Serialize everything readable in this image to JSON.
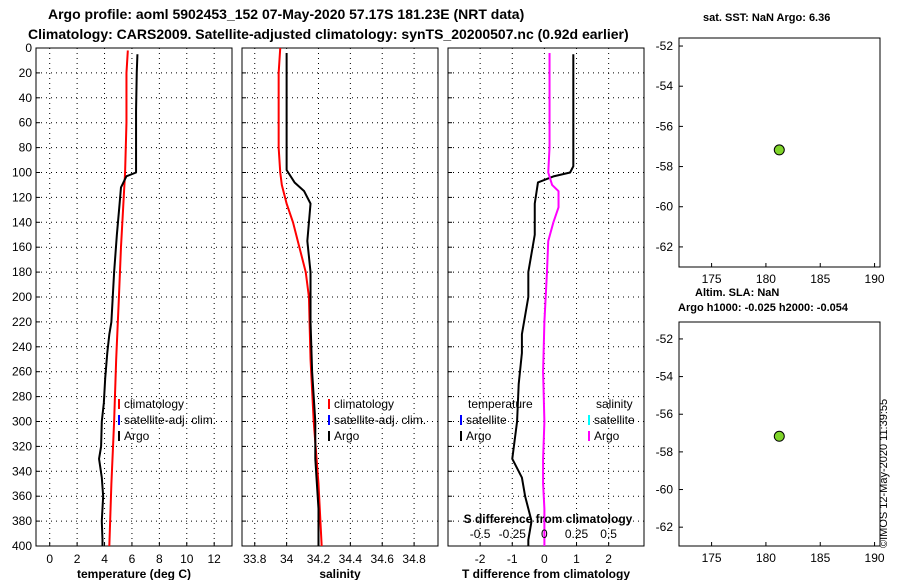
{
  "header": {
    "line1": "Argo profile: aoml 5902453_152 07-May-2020 57.17S 181.23E (NRT data)",
    "line2": "Climatology: CARS2009. Satellite-adjusted climatology: synTS_20200507.nc (0.92d earlier)"
  },
  "side": {
    "sst_title": "sat. SST: NaN Argo: 6.36",
    "sla_title1": "Altim. SLA: NaN",
    "sla_title2": "Argo h1000: -0.025 h2000: -0.054",
    "timestamp": "©IMOS 12-May-2020 11:39:55"
  },
  "colors": {
    "argo": "#000000",
    "climatology": "#ff0000",
    "satellite_temp": "#0000ff",
    "satellite_sal": "#00ffff",
    "salinity_diff": "#ff00ff",
    "marker": "#7fd42a"
  },
  "chart_data": [
    {
      "type": "line",
      "title": "",
      "xlabel": "temperature (deg C)",
      "ylabel": "",
      "xlim": [
        -1,
        13.3
      ],
      "ylim": [
        400,
        0
      ],
      "xticks": [
        0,
        2,
        4,
        6,
        8,
        10,
        12
      ],
      "xtick_labels": [
        "0",
        "2",
        "4",
        "6",
        "8",
        "10",
        "12"
      ],
      "yticks": [
        0,
        20,
        40,
        60,
        80,
        100,
        120,
        140,
        160,
        180,
        200,
        220,
        240,
        260,
        280,
        300,
        320,
        340,
        360,
        380,
        400
      ],
      "ytick_labels": [
        "0",
        "20",
        "40",
        "60",
        "80",
        "100",
        "120",
        "140",
        "160",
        "180",
        "200",
        "220",
        "240",
        "260",
        "280",
        "300",
        "320",
        "340",
        "360",
        "380",
        "400"
      ],
      "grid": true,
      "legend": {
        "position": "lower-right",
        "entries": [
          "climatology",
          "satellite-adj. clim.",
          "Argo"
        ]
      },
      "series": [
        {
          "name": "climatology",
          "color": "#ff0000",
          "points": [
            [
              5.7,
              2
            ],
            [
              5.6,
              20
            ],
            [
              5.6,
              60
            ],
            [
              5.5,
              100
            ],
            [
              5.4,
              120
            ],
            [
              5.2,
              160
            ],
            [
              5.05,
              200
            ],
            [
              4.85,
              250
            ],
            [
              4.7,
              300
            ],
            [
              4.5,
              350
            ],
            [
              4.35,
              400
            ]
          ]
        },
        {
          "name": "Argo",
          "color": "#000000",
          "points": [
            [
              6.4,
              5
            ],
            [
              6.35,
              20
            ],
            [
              6.3,
              50
            ],
            [
              6.3,
              80
            ],
            [
              6.3,
              100
            ],
            [
              5.6,
              103
            ],
            [
              5.2,
              112
            ],
            [
              5.1,
              125
            ],
            [
              4.9,
              150
            ],
            [
              4.7,
              180
            ],
            [
              4.6,
              200
            ],
            [
              4.5,
              220
            ],
            [
              4.35,
              230
            ],
            [
              4.2,
              245
            ],
            [
              4.05,
              265
            ],
            [
              3.95,
              285
            ],
            [
              3.8,
              300
            ],
            [
              3.75,
              320
            ],
            [
              3.6,
              330
            ],
            [
              3.8,
              345
            ],
            [
              3.9,
              360
            ],
            [
              3.8,
              380
            ],
            [
              3.85,
              395
            ],
            [
              3.85,
              400
            ]
          ]
        }
      ]
    },
    {
      "type": "line",
      "title": "",
      "xlabel": "salinity",
      "ylabel": "",
      "xlim": [
        33.72,
        34.95
      ],
      "ylim": [
        400,
        0
      ],
      "xticks": [
        33.8,
        34.0,
        34.2,
        34.4,
        34.6,
        34.8
      ],
      "xtick_labels": [
        "33.8",
        "34",
        "34.2",
        "34.4",
        "34.6",
        "34.8"
      ],
      "grid": true,
      "legend": {
        "position": "lower-right",
        "entries": [
          "climatology",
          "satellite-adj. clim.",
          "Argo"
        ]
      },
      "series": [
        {
          "name": "climatology",
          "color": "#ff0000",
          "points": [
            [
              33.96,
              0
            ],
            [
              33.95,
              20
            ],
            [
              33.95,
              50
            ],
            [
              33.95,
              80
            ],
            [
              33.96,
              100
            ],
            [
              33.97,
              110
            ],
            [
              34.0,
              125
            ],
            [
              34.04,
              140
            ],
            [
              34.08,
              160
            ],
            [
              34.12,
              180
            ],
            [
              34.14,
              200
            ],
            [
              34.15,
              250
            ],
            [
              34.17,
              300
            ],
            [
              34.2,
              350
            ],
            [
              34.22,
              400
            ]
          ]
        },
        {
          "name": "Argo",
          "color": "#000000",
          "points": [
            [
              34.0,
              4
            ],
            [
              34.0,
              40
            ],
            [
              34.0,
              80
            ],
            [
              34.0,
              98
            ],
            [
              34.05,
              108
            ],
            [
              34.11,
              115
            ],
            [
              34.15,
              125
            ],
            [
              34.14,
              140
            ],
            [
              34.13,
              155
            ],
            [
              34.15,
              180
            ],
            [
              34.15,
              220
            ],
            [
              34.16,
              260
            ],
            [
              34.18,
              300
            ],
            [
              34.18,
              330
            ],
            [
              34.19,
              350
            ],
            [
              34.2,
              370
            ],
            [
              34.2,
              400
            ]
          ]
        }
      ]
    },
    {
      "type": "line",
      "title": "",
      "xlabel": "T difference from climatology",
      "xlabel2": "S difference from climatology",
      "ylabel": "",
      "xlim": [
        -3,
        3.1
      ],
      "ylim": [
        400,
        0
      ],
      "xticks": [
        -2,
        -1,
        0,
        1,
        2
      ],
      "xtick_labels": [
        "-2",
        "-1",
        "0",
        "1",
        "2"
      ],
      "sal_xticks": [
        -0.5,
        -0.25,
        0,
        0.25,
        0.5
      ],
      "sal_xtick_labels": [
        "-0.5",
        "-0.25",
        "0",
        "0.25",
        "0.5"
      ],
      "sal_scale": 4,
      "grid": true,
      "legend_temperature": {
        "title": "temperature",
        "entries": [
          "satellite",
          "Argo"
        ]
      },
      "legend_salinity": {
        "title": "salinity",
        "entries": [
          "satellite",
          "Argo"
        ]
      },
      "series": [
        {
          "name": "temperature difference (Argo)",
          "color": "#000000",
          "points": [
            [
              0.9,
              5
            ],
            [
              0.9,
              40
            ],
            [
              0.9,
              80
            ],
            [
              0.9,
              95
            ],
            [
              0.8,
              100
            ],
            [
              0.3,
              103
            ],
            [
              -0.2,
              108
            ],
            [
              -0.3,
              125
            ],
            [
              -0.3,
              150
            ],
            [
              -0.5,
              180
            ],
            [
              -0.5,
              200
            ],
            [
              -0.6,
              215
            ],
            [
              -0.7,
              230
            ],
            [
              -0.7,
              245
            ],
            [
              -0.8,
              270
            ],
            [
              -0.85,
              300
            ],
            [
              -1.0,
              330
            ],
            [
              -0.7,
              345
            ],
            [
              -0.6,
              360
            ],
            [
              -0.4,
              380
            ],
            [
              -0.5,
              395
            ],
            [
              -0.5,
              400
            ]
          ]
        },
        {
          "name": "salinity difference (Argo)",
          "color": "#ff00ff",
          "points": [
            [
              0.04,
              4
            ],
            [
              0.04,
              40
            ],
            [
              0.04,
              80
            ],
            [
              0.03,
              100
            ],
            [
              0.06,
              110
            ],
            [
              0.11,
              115
            ],
            [
              0.11,
              128
            ],
            [
              0.07,
              140
            ],
            [
              0.03,
              155
            ],
            [
              0.02,
              180
            ],
            [
              0.0,
              220
            ],
            [
              -0.01,
              260
            ],
            [
              0.0,
              300
            ],
            [
              -0.01,
              330
            ],
            [
              -0.01,
              350
            ],
            [
              0.0,
              370
            ],
            [
              0.0,
              400
            ]
          ]
        }
      ]
    },
    {
      "type": "scatter",
      "title": "sat. SST: NaN Argo: 6.36",
      "xlabel": "",
      "ylabel": "",
      "xlim": [
        172,
        190.5
      ],
      "ylim": [
        -63,
        -51.6
      ],
      "xticks": [
        175,
        180,
        185,
        190
      ],
      "xtick_labels": [
        "175",
        "180",
        "185",
        "190"
      ],
      "yticks": [
        -52,
        -54,
        -56,
        -58,
        -60,
        -62
      ],
      "ytick_labels": [
        "-52",
        "-54",
        "-56",
        "-58",
        "-60",
        "-62"
      ],
      "grid": false,
      "points": [
        {
          "x": 181.23,
          "y": -57.17,
          "label": "Argo profile"
        }
      ]
    },
    {
      "type": "scatter",
      "title": "Altim. SLA: NaN | Argo h1000: -0.025 h2000: -0.054",
      "xlabel": "",
      "ylabel": "",
      "xlim": [
        172,
        190.5
      ],
      "ylim": [
        -63,
        -51.1
      ],
      "xticks": [
        175,
        180,
        185,
        190
      ],
      "xtick_labels": [
        "175",
        "180",
        "185",
        "190"
      ],
      "yticks": [
        -52,
        -54,
        -56,
        -58,
        -60,
        -62
      ],
      "ytick_labels": [
        "-52",
        "-54",
        "-56",
        "-58",
        "-60",
        "-62"
      ],
      "grid": false,
      "points": [
        {
          "x": 181.23,
          "y": -57.17,
          "label": "Argo profile"
        }
      ]
    }
  ]
}
